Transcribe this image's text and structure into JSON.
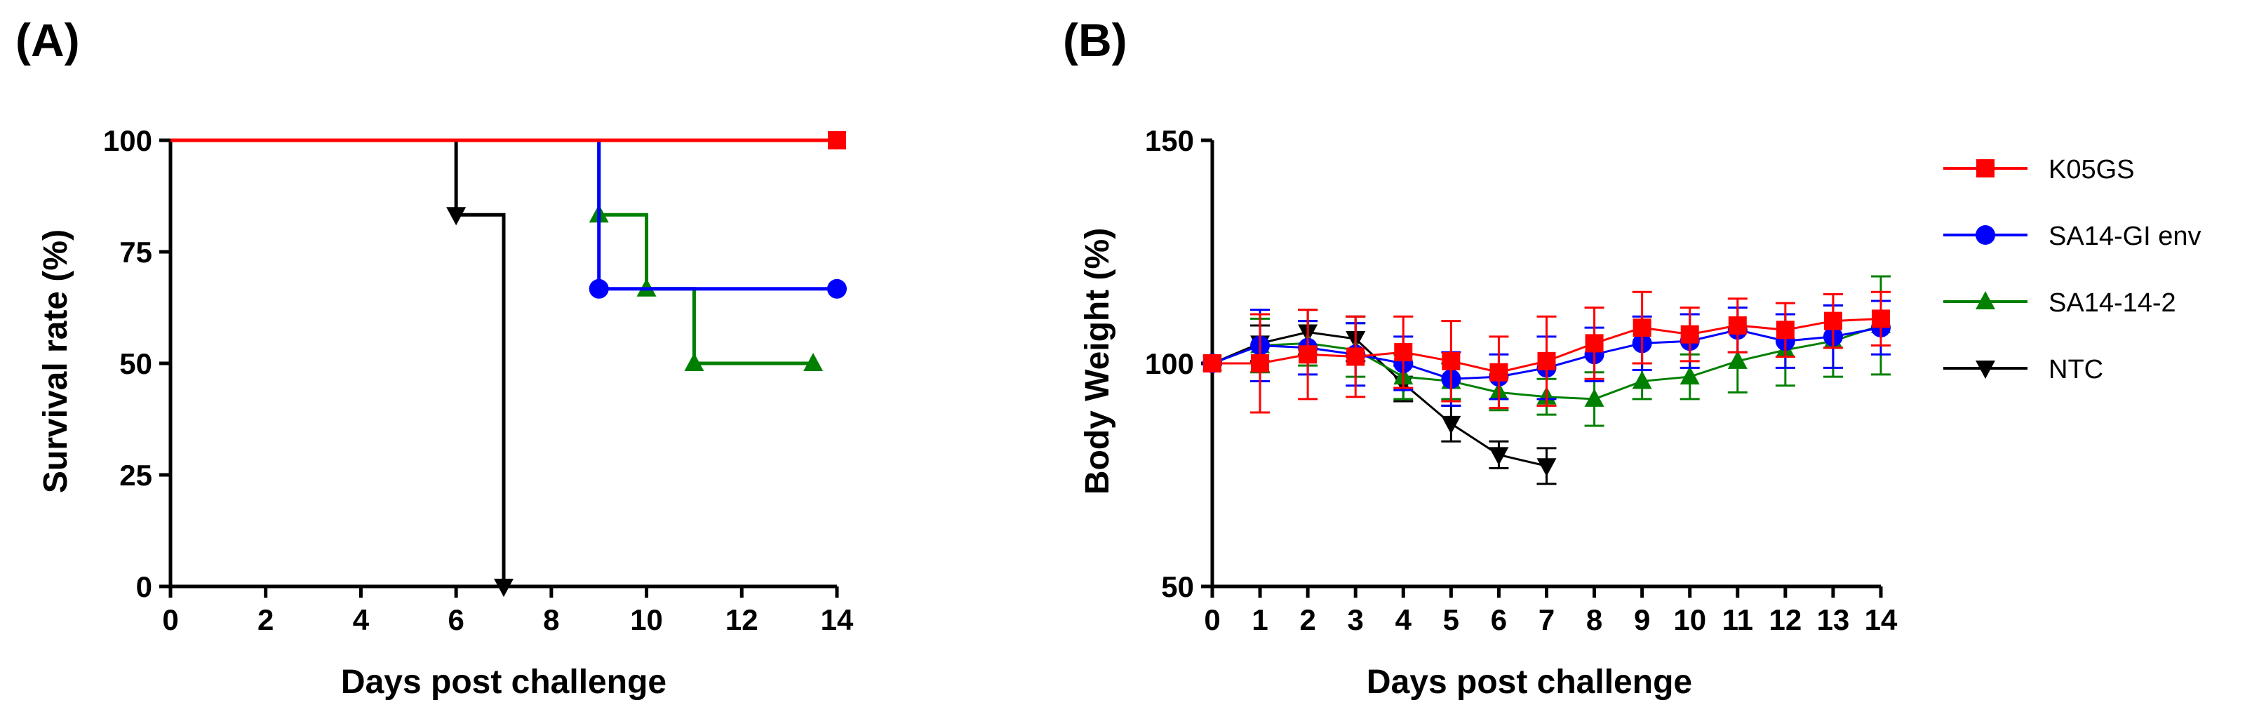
{
  "chart_data": [
    {
      "panel_label": "(A)",
      "type": "line",
      "subtype": "step-survival",
      "xlabel": "Days post challenge",
      "ylabel": "Survival rate (%)",
      "xlim": [
        0,
        14
      ],
      "ylim": [
        0,
        100
      ],
      "xticks": [
        0,
        2,
        4,
        6,
        8,
        10,
        12,
        14
      ],
      "yticks": [
        0,
        25,
        50,
        75,
        100
      ],
      "series": [
        {
          "name": "K05GS",
          "color": "#ff0000",
          "marker": "square",
          "steps": [
            [
              0,
              100
            ],
            [
              14,
              100
            ]
          ],
          "markers": [
            [
              14,
              100
            ]
          ]
        },
        {
          "name": "SA14-GI env",
          "color": "#0000ff",
          "marker": "circle",
          "steps": [
            [
              0,
              100
            ],
            [
              9,
              66.7
            ],
            [
              14,
              66.7
            ]
          ],
          "markers": [
            [
              9,
              66.7
            ],
            [
              14,
              66.7
            ]
          ]
        },
        {
          "name": "SA14-14-2",
          "color": "#008000",
          "marker": "triangle-up",
          "steps": [
            [
              0,
              100
            ],
            [
              9,
              83.3
            ],
            [
              10,
              66.7
            ],
            [
              11,
              50
            ],
            [
              13.5,
              50
            ]
          ],
          "markers": [
            [
              9,
              83.3
            ],
            [
              10,
              66.7
            ],
            [
              11,
              50
            ],
            [
              13.5,
              50
            ]
          ]
        },
        {
          "name": "NTC",
          "color": "#000000",
          "marker": "triangle-down",
          "steps": [
            [
              0,
              100
            ],
            [
              6,
              83.3
            ],
            [
              7,
              0
            ]
          ],
          "markers": [
            [
              6,
              83.3
            ],
            [
              7,
              0
            ]
          ]
        }
      ]
    },
    {
      "panel_label": "(B)",
      "type": "line",
      "subtype": "errorbar",
      "xlabel": "Days post challenge",
      "ylabel": "Body Weight  (%)",
      "xlim": [
        0,
        14
      ],
      "ylim": [
        50,
        150
      ],
      "xticks": [
        0,
        1,
        2,
        3,
        4,
        5,
        6,
        7,
        8,
        9,
        10,
        11,
        12,
        13,
        14
      ],
      "yticks": [
        50,
        100,
        150
      ],
      "legend": "right",
      "series": [
        {
          "name": "K05GS",
          "color": "#ff0000",
          "marker": "square",
          "x": [
            0,
            1,
            2,
            3,
            4,
            5,
            6,
            7,
            8,
            9,
            10,
            11,
            12,
            13,
            14
          ],
          "y": [
            100,
            100,
            102,
            101.5,
            102.5,
            100.5,
            98,
            100.5,
            104.5,
            108,
            106.5,
            108.5,
            107.5,
            109.5,
            110
          ],
          "err": [
            0,
            11,
            10,
            9,
            8,
            9,
            8,
            10,
            8,
            8,
            6,
            6,
            6,
            6,
            6
          ]
        },
        {
          "name": "SA14-GI env",
          "color": "#0000ff",
          "marker": "circle",
          "x": [
            0,
            1,
            2,
            3,
            4,
            5,
            6,
            7,
            8,
            9,
            10,
            11,
            12,
            13,
            14
          ],
          "y": [
            100,
            104,
            103.5,
            102,
            100,
            96.5,
            97,
            99,
            102,
            104.5,
            105,
            107.5,
            105,
            106,
            108
          ],
          "err": [
            0,
            8,
            6,
            7,
            6,
            6,
            5,
            7,
            6,
            6,
            6,
            5,
            6,
            7,
            6
          ]
        },
        {
          "name": "SA14-14-2",
          "color": "#008000",
          "marker": "triangle-up",
          "x": [
            0,
            1,
            2,
            3,
            4,
            5,
            6,
            7,
            8,
            9,
            10,
            11,
            12,
            13,
            14
          ],
          "y": [
            100,
            104,
            104.5,
            103,
            97,
            96,
            93.5,
            92.5,
            92,
            96,
            97,
            100.5,
            103,
            105,
            108.5
          ],
          "err": [
            0,
            6,
            5,
            6,
            5,
            4,
            4,
            4,
            6,
            4,
            5,
            7,
            8,
            8,
            11
          ]
        },
        {
          "name": "NTC",
          "color": "#000000",
          "marker": "triangle-down",
          "x": [
            0,
            1,
            2,
            3,
            4,
            5,
            6,
            7
          ],
          "y": [
            100,
            104.5,
            107,
            105.5,
            95.5,
            86.5,
            79.5,
            77
          ],
          "err": [
            0,
            4,
            5,
            5,
            4,
            4,
            3,
            4
          ]
        }
      ]
    }
  ]
}
